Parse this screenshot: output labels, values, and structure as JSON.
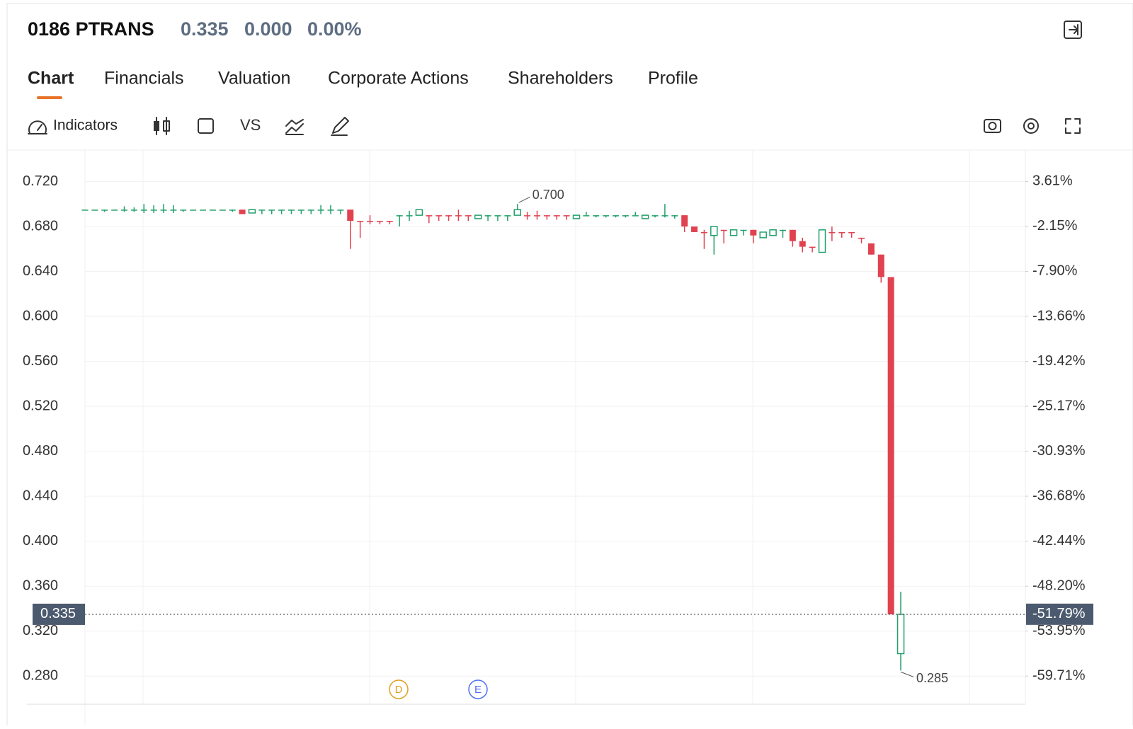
{
  "header": {
    "symbol": "0186 PTRANS",
    "price": "0.335",
    "change": "0.000",
    "change_pct": "0.00%"
  },
  "tabs": [
    "Chart",
    "Financials",
    "Valuation",
    "Corporate Actions",
    "Shareholders",
    "Profile"
  ],
  "toolbar": {
    "indicators": "Indicators",
    "compare": "VS"
  },
  "chart_data": {
    "type": "candlestick",
    "up_color": "#22a06b",
    "down_color": "#e0424f",
    "ylim": [
      0.255,
      0.748
    ],
    "yticks": [
      {
        "value": 0.72,
        "label": "0.720"
      },
      {
        "value": 0.68,
        "label": "0.680"
      },
      {
        "value": 0.64,
        "label": "0.640"
      },
      {
        "value": 0.6,
        "label": "0.600"
      },
      {
        "value": 0.56,
        "label": "0.560"
      },
      {
        "value": 0.52,
        "label": "0.520"
      },
      {
        "value": 0.48,
        "label": "0.480"
      },
      {
        "value": 0.44,
        "label": "0.440"
      },
      {
        "value": 0.4,
        "label": "0.400"
      },
      {
        "value": 0.36,
        "label": "0.360"
      },
      {
        "value": 0.32,
        "label": "0.320"
      },
      {
        "value": 0.28,
        "label": "0.280"
      }
    ],
    "y2lim": [
      -63.31,
      7.63
    ],
    "y2ticks": [
      {
        "value": 3.61,
        "label": "3.61%"
      },
      {
        "value": -2.15,
        "label": "-2.15%"
      },
      {
        "value": -7.9,
        "label": "-7.90%"
      },
      {
        "value": -13.66,
        "label": "-13.66%"
      },
      {
        "value": -19.42,
        "label": "-19.42%"
      },
      {
        "value": -25.17,
        "label": "-25.17%"
      },
      {
        "value": -30.93,
        "label": "-30.93%"
      },
      {
        "value": -36.68,
        "label": "-36.68%"
      },
      {
        "value": -42.44,
        "label": "-42.44%"
      },
      {
        "value": -48.2,
        "label": "-48.20%"
      },
      {
        "value": -53.95,
        "label": "-53.95%"
      },
      {
        "value": -59.71,
        "label": "-59.71%"
      }
    ],
    "last_price": 0.335,
    "last_pct": {
      "value": -51.79,
      "label": "-51.79%"
    },
    "high_label": {
      "value": 0.7,
      "label": "0.700"
    },
    "low_label": 0.285,
    "events": [
      "D",
      "E"
    ],
    "ohlc": [
      [
        0.695,
        0.695,
        0.695,
        0.695
      ],
      [
        0.695,
        0.695,
        0.695,
        0.695
      ],
      [
        0.695,
        0.695,
        0.693,
        0.695
      ],
      [
        0.695,
        0.695,
        0.695,
        0.695
      ],
      [
        0.695,
        0.698,
        0.693,
        0.695
      ],
      [
        0.695,
        0.697,
        0.693,
        0.695
      ],
      [
        0.695,
        0.7,
        0.692,
        0.695
      ],
      [
        0.695,
        0.699,
        0.692,
        0.695
      ],
      [
        0.695,
        0.7,
        0.692,
        0.695
      ],
      [
        0.695,
        0.699,
        0.692,
        0.695
      ],
      [
        0.695,
        0.695,
        0.693,
        0.695
      ],
      [
        0.695,
        0.695,
        0.695,
        0.695
      ],
      [
        0.695,
        0.695,
        0.695,
        0.695
      ],
      [
        0.695,
        0.695,
        0.695,
        0.695
      ],
      [
        0.695,
        0.695,
        0.695,
        0.695
      ],
      [
        0.695,
        0.695,
        0.693,
        0.695
      ],
      [
        0.695,
        0.695,
        0.691,
        0.691
      ],
      [
        0.692,
        0.695,
        0.692,
        0.695
      ],
      [
        0.695,
        0.695,
        0.691,
        0.695
      ],
      [
        0.695,
        0.695,
        0.691,
        0.695
      ],
      [
        0.695,
        0.695,
        0.691,
        0.695
      ],
      [
        0.695,
        0.695,
        0.691,
        0.695
      ],
      [
        0.695,
        0.695,
        0.691,
        0.695
      ],
      [
        0.695,
        0.695,
        0.691,
        0.695
      ],
      [
        0.695,
        0.699,
        0.691,
        0.695
      ],
      [
        0.695,
        0.699,
        0.691,
        0.695
      ],
      [
        0.695,
        0.695,
        0.691,
        0.695
      ],
      [
        0.695,
        0.695,
        0.66,
        0.685
      ],
      [
        0.685,
        0.685,
        0.67,
        0.685
      ],
      [
        0.685,
        0.69,
        0.682,
        0.685
      ],
      [
        0.685,
        0.685,
        0.682,
        0.685
      ],
      [
        0.685,
        0.685,
        0.682,
        0.685
      ],
      [
        0.69,
        0.69,
        0.68,
        0.69
      ],
      [
        0.69,
        0.694,
        0.685,
        0.69
      ],
      [
        0.69,
        0.695,
        0.69,
        0.695
      ],
      [
        0.69,
        0.69,
        0.683,
        0.69
      ],
      [
        0.69,
        0.69,
        0.685,
        0.69
      ],
      [
        0.69,
        0.69,
        0.685,
        0.69
      ],
      [
        0.69,
        0.695,
        0.685,
        0.69
      ],
      [
        0.69,
        0.69,
        0.685,
        0.69
      ],
      [
        0.687,
        0.69,
        0.687,
        0.69
      ],
      [
        0.69,
        0.69,
        0.685,
        0.69
      ],
      [
        0.69,
        0.69,
        0.685,
        0.69
      ],
      [
        0.69,
        0.69,
        0.685,
        0.69
      ],
      [
        0.69,
        0.7,
        0.69,
        0.695
      ],
      [
        0.69,
        0.693,
        0.686,
        0.69
      ],
      [
        0.69,
        0.694,
        0.686,
        0.69
      ],
      [
        0.69,
        0.69,
        0.686,
        0.69
      ],
      [
        0.69,
        0.69,
        0.686,
        0.69
      ],
      [
        0.69,
        0.69,
        0.686,
        0.69
      ],
      [
        0.687,
        0.69,
        0.687,
        0.69
      ],
      [
        0.69,
        0.693,
        0.69,
        0.69
      ],
      [
        0.69,
        0.69,
        0.688,
        0.69
      ],
      [
        0.69,
        0.69,
        0.688,
        0.69
      ],
      [
        0.69,
        0.69,
        0.688,
        0.69
      ],
      [
        0.69,
        0.69,
        0.688,
        0.69
      ],
      [
        0.69,
        0.693,
        0.69,
        0.69
      ],
      [
        0.687,
        0.69,
        0.687,
        0.69
      ],
      [
        0.69,
        0.69,
        0.688,
        0.69
      ],
      [
        0.69,
        0.7,
        0.688,
        0.69
      ],
      [
        0.69,
        0.69,
        0.687,
        0.69
      ],
      [
        0.69,
        0.69,
        0.675,
        0.68
      ],
      [
        0.68,
        0.68,
        0.675,
        0.675
      ],
      [
        0.675,
        0.677,
        0.66,
        0.675
      ],
      [
        0.672,
        0.68,
        0.655,
        0.68
      ],
      [
        0.677,
        0.677,
        0.665,
        0.677
      ],
      [
        0.672,
        0.677,
        0.672,
        0.677
      ],
      [
        0.677,
        0.677,
        0.672,
        0.677
      ],
      [
        0.677,
        0.677,
        0.665,
        0.672
      ],
      [
        0.67,
        0.675,
        0.67,
        0.675
      ],
      [
        0.672,
        0.677,
        0.672,
        0.677
      ],
      [
        0.677,
        0.677,
        0.67,
        0.677
      ],
      [
        0.677,
        0.677,
        0.662,
        0.667
      ],
      [
        0.667,
        0.67,
        0.657,
        0.662
      ],
      [
        0.662,
        0.662,
        0.657,
        0.662
      ],
      [
        0.657,
        0.677,
        0.657,
        0.677
      ],
      [
        0.675,
        0.68,
        0.667,
        0.675
      ],
      [
        0.675,
        0.675,
        0.67,
        0.675
      ],
      [
        0.675,
        0.675,
        0.67,
        0.675
      ],
      [
        0.67,
        0.67,
        0.665,
        0.67
      ],
      [
        0.665,
        0.665,
        0.655,
        0.655
      ],
      [
        0.655,
        0.655,
        0.63,
        0.635
      ],
      [
        0.635,
        0.635,
        0.335,
        0.335
      ],
      [
        0.3,
        0.355,
        0.285,
        0.335
      ]
    ]
  }
}
